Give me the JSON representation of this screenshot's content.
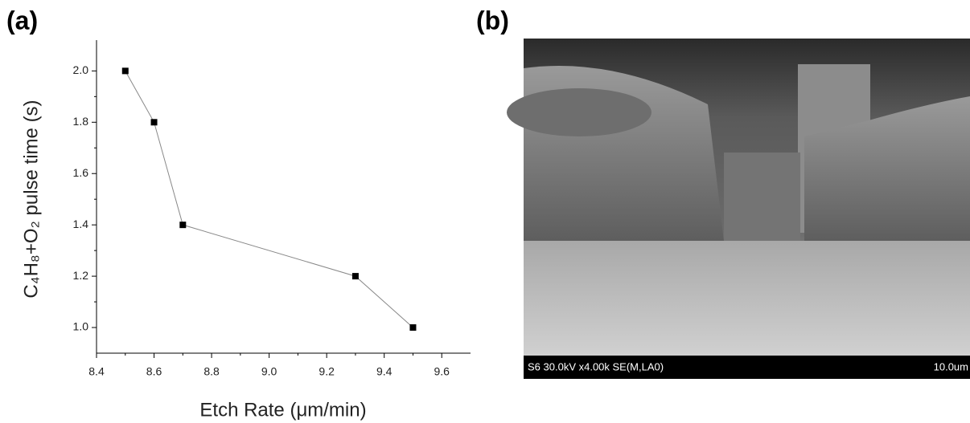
{
  "panels": {
    "a": "(a)",
    "b": "(b)"
  },
  "chart_data": {
    "type": "line",
    "x_label": "Etch Rate (μm/min)",
    "y_label": "C₄H₈+O₂ pulse time (s)",
    "x": [
      8.5,
      8.6,
      8.7,
      9.3,
      9.5
    ],
    "series": [
      {
        "color": "#000000",
        "values": [
          2.0,
          1.8,
          1.4,
          1.2,
          1.0
        ]
      }
    ],
    "xlim": [
      8.4,
      9.7
    ],
    "ylim": [
      0.9,
      2.12
    ],
    "xticks": [
      {
        "value": 8.4,
        "label": "8.4"
      },
      {
        "value": 8.6,
        "label": "8.6"
      },
      {
        "value": 8.8,
        "label": "8.8"
      },
      {
        "value": 9.0,
        "label": "9.0"
      },
      {
        "value": 9.2,
        "label": "9.2"
      },
      {
        "value": 9.4,
        "label": "9.4"
      },
      {
        "value": 9.6,
        "label": "9.6"
      }
    ],
    "yticks": [
      {
        "value": 1.0,
        "label": "1.0"
      },
      {
        "value": 1.2,
        "label": "1.2"
      },
      {
        "value": 1.4,
        "label": "1.4"
      },
      {
        "value": 1.6,
        "label": "1.6"
      },
      {
        "value": 1.8,
        "label": "1.8"
      },
      {
        "value": 2.0,
        "label": "2.0"
      }
    ]
  },
  "sem_image": {
    "info": "S6 30.0kV x4.00k SE(M,LA0)",
    "scale_bar": "10.0um"
  }
}
